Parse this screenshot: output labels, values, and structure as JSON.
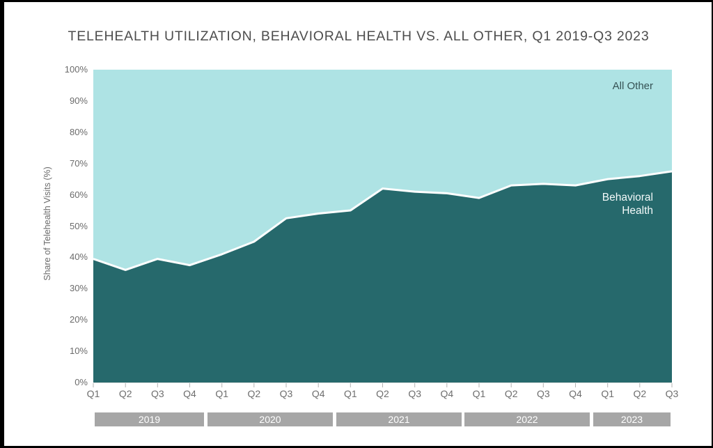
{
  "page": {
    "title": "TELEHEALTH UTILIZATION, BEHAVIORAL HEALTH VS. ALL OTHER, Q1 2019-Q3 2023"
  },
  "annotations": {
    "all_other_label": "All Other",
    "behavioral_line1": "Behavioral",
    "behavioral_line2": "Health"
  },
  "chart_data": {
    "type": "area",
    "subtype": "100-percent-stacked",
    "title": "TELEHEALTH UTILIZATION, BEHAVIORAL HEALTH VS. ALL OTHER, Q1 2019-Q3 2023",
    "xlabel": "",
    "ylabel": "Share of Telehealth Visits (%)",
    "ylim": [
      0,
      100
    ],
    "y_tick_labels": [
      "0%",
      "10%",
      "20%",
      "30%",
      "40%",
      "50%",
      "60%",
      "70%",
      "80%",
      "90%",
      "100%"
    ],
    "grid": false,
    "legend_position": "in-plot annotations",
    "categories": [
      "Q1",
      "Q2",
      "Q3",
      "Q4",
      "Q1",
      "Q2",
      "Q3",
      "Q4",
      "Q1",
      "Q2",
      "Q3",
      "Q4",
      "Q1",
      "Q2",
      "Q3",
      "Q4",
      "Q1",
      "Q2",
      "Q3"
    ],
    "year_groups": [
      {
        "label": "2019",
        "start": 0,
        "end": 3
      },
      {
        "label": "2020",
        "start": 4,
        "end": 7
      },
      {
        "label": "2021",
        "start": 8,
        "end": 11
      },
      {
        "label": "2022",
        "start": 12,
        "end": 15
      },
      {
        "label": "2023",
        "start": 16,
        "end": 18
      }
    ],
    "series": [
      {
        "name": "Behavioral Health",
        "values": [
          39.5,
          36,
          39.5,
          37.5,
          41,
          45,
          52.5,
          54,
          55,
          62,
          61,
          60.5,
          59,
          63,
          63.5,
          63,
          65,
          66,
          67.5
        ],
        "color": "#26696C"
      },
      {
        "name": "All Other",
        "values": [
          60.5,
          64,
          60.5,
          62.5,
          59,
          55,
          47.5,
          46,
          45,
          38,
          39,
          39.5,
          41,
          37,
          36.5,
          37,
          35,
          34,
          32.5
        ],
        "color": "#AEE3E4"
      }
    ],
    "boundary_line_color": "#FFFFFF",
    "colors": {
      "year_band_bg": "#A6A6A6",
      "year_band_text": "#FFFFFF",
      "axis_text": "#6B6B6B",
      "title_text": "#4D4D4D",
      "tick_mark": "#B3B3B3",
      "baseline": "#E0E0E0"
    }
  }
}
